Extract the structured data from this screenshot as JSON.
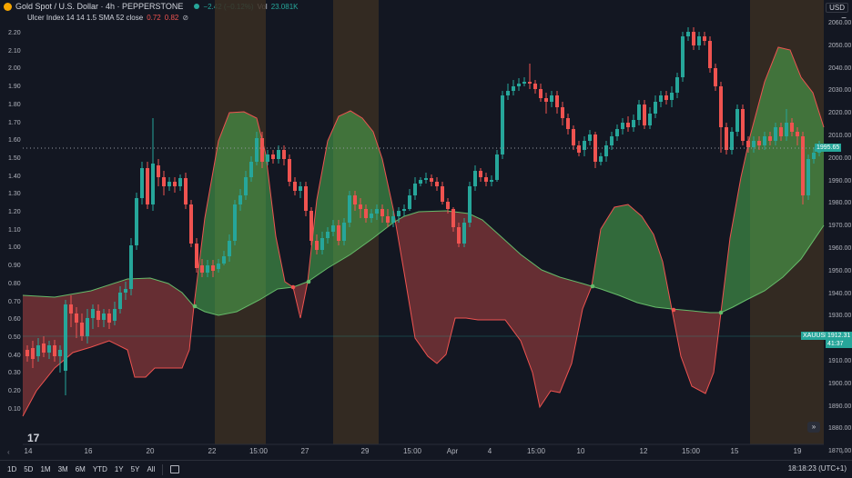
{
  "header": {
    "title": "Gold Spot / U.S. Dollar · 4h · PEPPERSTONE",
    "change": "−2.42 (−0.12%)",
    "vol_label": "Vol",
    "vol_value": "23.081K",
    "currency": "USD",
    "collapse": "−"
  },
  "indicator": {
    "name": "Ulcer Index 14 14 1.5 SMA 52 close",
    "value1": "0.72",
    "value2": "0.82",
    "eye": "⊘"
  },
  "left_axis": [
    "2.20",
    "2.10",
    "2.00",
    "1.90",
    "1.80",
    "1.70",
    "1.60",
    "1.50",
    "1.40",
    "1.30",
    "1.20",
    "1.10",
    "1.00",
    "0.90",
    "0.80",
    "0.70",
    "0.60",
    "0.50",
    "0.40",
    "0.30",
    "0.20",
    "0.10"
  ],
  "right_axis": [
    "2060.00",
    "2050.00",
    "2040.00",
    "2030.00",
    "2020.00",
    "2010.00",
    "2000.00",
    "1990.00",
    "1980.00",
    "1970.00",
    "1960.00",
    "1950.00",
    "1940.00",
    "1930.00",
    "1920.00",
    "1910.00",
    "1900.00",
    "1890.00",
    "1880.00",
    "1870.00"
  ],
  "x_axis": [
    "14",
    "16",
    "20",
    "22",
    "15:00",
    "27",
    "29",
    "15:00",
    "Apr",
    "4",
    "15:00",
    "10",
    "12",
    "15:00",
    "15",
    "19"
  ],
  "price_badge": {
    "value": "1995.65",
    "color": "#26a69a"
  },
  "symbol_badge": {
    "symbol": "XAUUSD",
    "value": "1912.31",
    "countdown": "41:37",
    "color": "#26a69a"
  },
  "timeframes": [
    "1D",
    "5D",
    "1M",
    "3M",
    "6M",
    "YTD",
    "1Y",
    "5Y",
    "All"
  ],
  "clock": "18:18:23 (UTC+1)",
  "logo": "17",
  "nav_left": "‹",
  "nav_right": "›",
  "colors": {
    "up": "#26a69a",
    "down": "#ef5350",
    "bg": "#131722"
  }
}
